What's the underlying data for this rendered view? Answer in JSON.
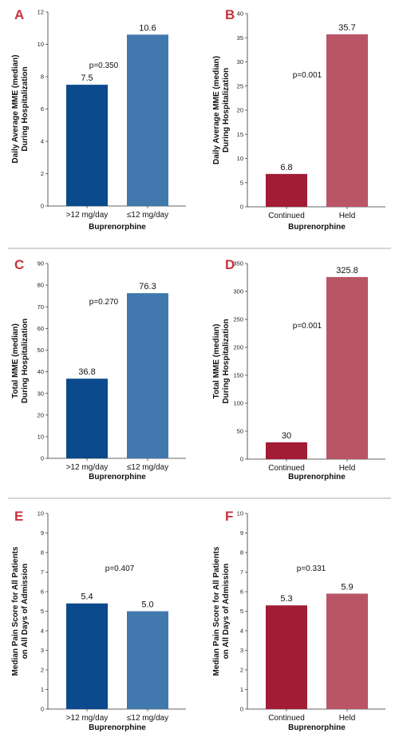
{
  "colors": {
    "divider": "#aaaaaa",
    "panel_letter": "#c8323c",
    "axis": "#333333"
  },
  "chart_data": [
    {
      "panel": "A",
      "type": "bar",
      "categories": [
        ">12 mg/day",
        "≤12 mg/day"
      ],
      "values": [
        7.5,
        10.6
      ],
      "value_labels": [
        "7.5",
        "10.6"
      ],
      "colors": [
        "#0b4a8c",
        "#4178ad"
      ],
      "ylim": [
        0,
        12
      ],
      "yticks": [
        0,
        2,
        4,
        6,
        8,
        10,
        12
      ],
      "ylabel": [
        "Daily Average MME (median)",
        "During Hospitalization"
      ],
      "xlabel": "Buprenorphine",
      "annotation": "p=0.350"
    },
    {
      "panel": "B",
      "type": "bar",
      "categories": [
        "Continued",
        "Held"
      ],
      "values": [
        6.8,
        35.7
      ],
      "value_labels": [
        "6.8",
        "35.7"
      ],
      "colors": [
        "#a21c36",
        "#ba5568"
      ],
      "ylim": [
        0,
        40
      ],
      "yticks": [
        0,
        5,
        10,
        15,
        20,
        25,
        30,
        35,
        40
      ],
      "ylabel": [
        "Daily Average MME (median)",
        "During Hospitalization"
      ],
      "xlabel": "Buprenorphine",
      "annotation": "p=0.001"
    },
    {
      "panel": "C",
      "type": "bar",
      "categories": [
        ">12 mg/day",
        "≤12 mg/day"
      ],
      "values": [
        36.8,
        76.3
      ],
      "value_labels": [
        "36.8",
        "76.3"
      ],
      "colors": [
        "#0b4a8c",
        "#4178ad"
      ],
      "ylim": [
        0,
        90
      ],
      "yticks": [
        0,
        10,
        20,
        30,
        40,
        50,
        60,
        70,
        80,
        90
      ],
      "ylabel": [
        "Total MME (median)",
        "During Hospitalization"
      ],
      "xlabel": "Buprenorphine",
      "annotation": "p=0.270"
    },
    {
      "panel": "D",
      "type": "bar",
      "categories": [
        "Continued",
        "Held"
      ],
      "values": [
        30,
        325.8
      ],
      "value_labels": [
        "30",
        "325.8"
      ],
      "colors": [
        "#a21c36",
        "#ba5568"
      ],
      "ylim": [
        0,
        350
      ],
      "yticks": [
        0,
        50,
        100,
        150,
        200,
        250,
        300,
        350
      ],
      "ylabel": [
        "Total MME (median)",
        "During Hospitalization"
      ],
      "xlabel": "Buprenorphine",
      "annotation": "p=0.001"
    },
    {
      "panel": "E",
      "type": "bar",
      "categories": [
        ">12 mg/day",
        "≤12 mg/day"
      ],
      "values": [
        5.4,
        5.0
      ],
      "value_labels": [
        "5.4",
        "5.0"
      ],
      "colors": [
        "#0b4a8c",
        "#4178ad"
      ],
      "ylim": [
        0,
        10
      ],
      "yticks": [
        0,
        1,
        2,
        3,
        4,
        5,
        6,
        7,
        8,
        9,
        10
      ],
      "ylabel": [
        "Median Pain Score for All Patients",
        "on All Days of Admission"
      ],
      "xlabel": "Buprenorphine",
      "annotation": "p=0.407"
    },
    {
      "panel": "F",
      "type": "bar",
      "categories": [
        "Continued",
        "Held"
      ],
      "values": [
        5.3,
        5.9
      ],
      "value_labels": [
        "5.3",
        "5.9"
      ],
      "colors": [
        "#a21c36",
        "#ba5568"
      ],
      "ylim": [
        0,
        10
      ],
      "yticks": [
        0,
        1,
        2,
        3,
        4,
        5,
        6,
        7,
        8,
        9,
        10
      ],
      "ylabel": [
        "Median Pain Score for All Patients",
        "on All Days of Admission"
      ],
      "xlabel": "Buprenorphine",
      "annotation": "p=0.331"
    }
  ]
}
